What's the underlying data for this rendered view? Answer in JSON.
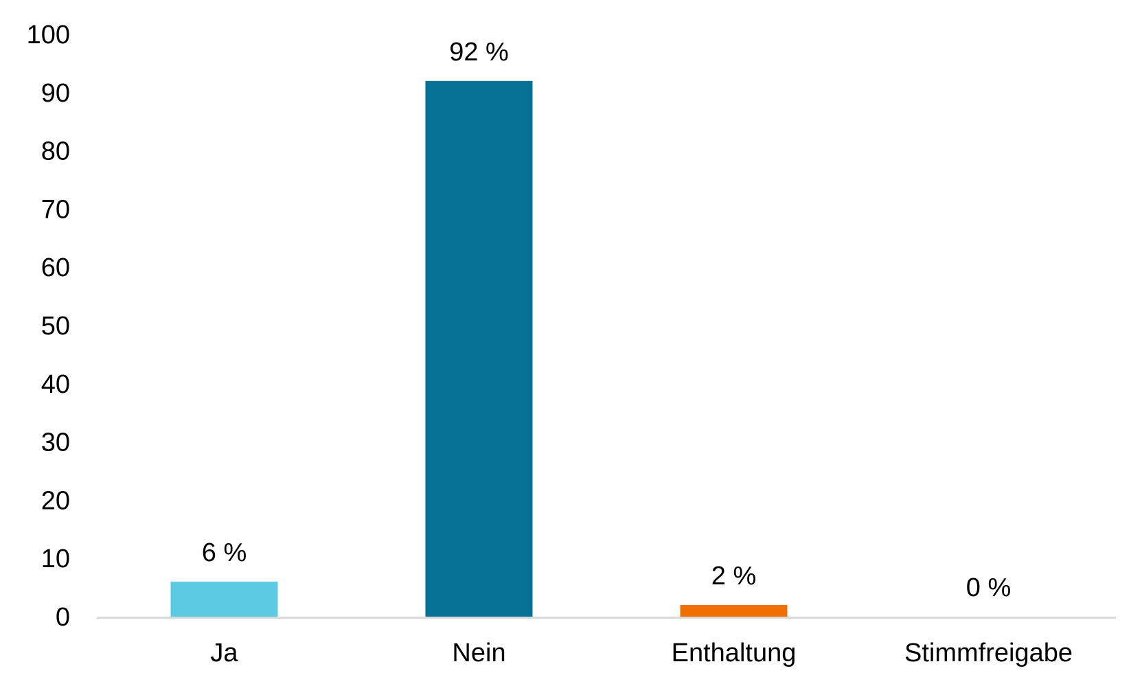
{
  "chart_data": {
    "type": "bar",
    "title": "",
    "xlabel": "",
    "ylabel": "",
    "categories": [
      "Ja",
      "Nein",
      "Enthaltung",
      "Stimmfreigabe"
    ],
    "values": [
      6,
      92,
      2,
      0
    ],
    "data_labels": [
      "6 %",
      "92 %",
      "2 %",
      "0 %"
    ],
    "colors": [
      "#5bcbe3",
      "#067194",
      "#ef7000",
      "#9a9a9a"
    ],
    "ylim": [
      0,
      100
    ],
    "yticks": [
      0,
      10,
      20,
      30,
      40,
      50,
      60,
      70,
      80,
      90,
      100
    ],
    "grid": false,
    "legend": "none",
    "axis_color": "#d9d9d9"
  }
}
